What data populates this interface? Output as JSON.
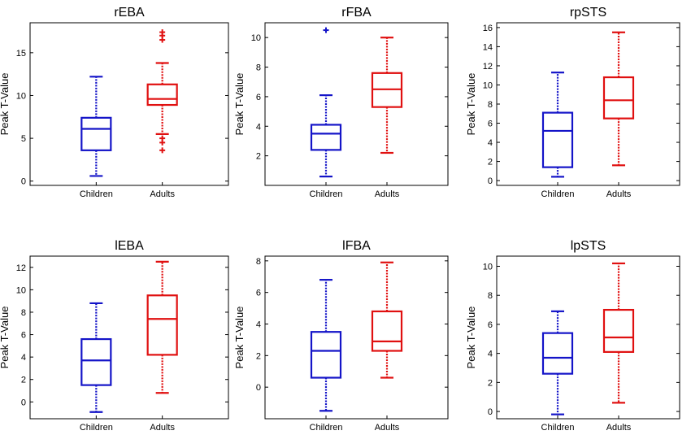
{
  "chart_data": [
    {
      "type": "boxplot",
      "title": "rEBA",
      "ylabel": "Peak T-Value",
      "ylim": [
        -0.5,
        18.5
      ],
      "yticks": [
        0,
        5,
        10,
        15
      ],
      "categories": [
        "Children",
        "Adults"
      ],
      "series": [
        {
          "name": "Children",
          "color": "#1414c8",
          "whisker_low": 0.6,
          "q1": 3.6,
          "median": 6.1,
          "q3": 7.4,
          "whisker_high": 12.2,
          "outliers": []
        },
        {
          "name": "Adults",
          "color": "#e01010",
          "whisker_low": 5.5,
          "q1": 8.9,
          "median": 9.6,
          "q3": 11.3,
          "whisker_high": 13.8,
          "outliers": [
            3.6,
            4.5,
            5.0,
            16.5,
            17.0,
            17.4
          ]
        }
      ]
    },
    {
      "type": "boxplot",
      "title": "rFBA",
      "ylabel": "Peak T-Value",
      "ylim": [
        0,
        11
      ],
      "yticks": [
        2,
        4,
        6,
        8,
        10
      ],
      "categories": [
        "Children",
        "Adults"
      ],
      "series": [
        {
          "name": "Children",
          "color": "#1414c8",
          "whisker_low": 0.6,
          "q1": 2.4,
          "median": 3.5,
          "q3": 4.1,
          "whisker_high": 6.1,
          "outliers": [
            10.5
          ]
        },
        {
          "name": "Adults",
          "color": "#e01010",
          "whisker_low": 2.2,
          "q1": 5.3,
          "median": 6.5,
          "q3": 7.6,
          "whisker_high": 10.0,
          "outliers": []
        }
      ]
    },
    {
      "type": "boxplot",
      "title": "rpSTS",
      "ylabel": "Peak T-Value",
      "ylim": [
        -0.5,
        16.5
      ],
      "yticks": [
        0,
        2,
        4,
        6,
        8,
        10,
        12,
        14,
        16
      ],
      "categories": [
        "Children",
        "Adults"
      ],
      "series": [
        {
          "name": "Children",
          "color": "#1414c8",
          "whisker_low": 0.4,
          "q1": 1.4,
          "median": 5.2,
          "q3": 7.1,
          "whisker_high": 11.3,
          "outliers": []
        },
        {
          "name": "Adults",
          "color": "#e01010",
          "whisker_low": 1.6,
          "q1": 6.5,
          "median": 8.4,
          "q3": 10.8,
          "whisker_high": 15.5,
          "outliers": []
        }
      ]
    },
    {
      "type": "boxplot",
      "title": "lEBA",
      "ylabel": "Peak T-Value",
      "ylim": [
        -1.5,
        13
      ],
      "yticks": [
        0,
        2,
        4,
        6,
        8,
        10,
        12
      ],
      "categories": [
        "Children",
        "Adults"
      ],
      "series": [
        {
          "name": "Children",
          "color": "#1414c8",
          "whisker_low": -0.9,
          "q1": 1.5,
          "median": 3.7,
          "q3": 5.6,
          "whisker_high": 8.8,
          "outliers": []
        },
        {
          "name": "Adults",
          "color": "#e01010",
          "whisker_low": 0.8,
          "q1": 4.2,
          "median": 7.4,
          "q3": 9.5,
          "whisker_high": 12.5,
          "outliers": []
        }
      ]
    },
    {
      "type": "boxplot",
      "title": "lFBA",
      "ylabel": "Peak T-Value",
      "ylim": [
        -2,
        8.3
      ],
      "yticks": [
        0,
        2,
        4,
        6,
        8
      ],
      "categories": [
        "Children",
        "Adults"
      ],
      "series": [
        {
          "name": "Children",
          "color": "#1414c8",
          "whisker_low": -1.5,
          "q1": 0.6,
          "median": 2.3,
          "q3": 3.5,
          "whisker_high": 6.8,
          "outliers": []
        },
        {
          "name": "Adults",
          "color": "#e01010",
          "whisker_low": 0.6,
          "q1": 2.3,
          "median": 2.9,
          "q3": 4.8,
          "whisker_high": 7.9,
          "outliers": []
        }
      ]
    },
    {
      "type": "boxplot",
      "title": "lpSTS",
      "ylabel": "Peak T-Value",
      "ylim": [
        -0.5,
        10.7
      ],
      "yticks": [
        0,
        2,
        4,
        6,
        8,
        10
      ],
      "categories": [
        "Children",
        "Adults"
      ],
      "series": [
        {
          "name": "Children",
          "color": "#1414c8",
          "whisker_low": -0.2,
          "q1": 2.6,
          "median": 3.7,
          "q3": 5.4,
          "whisker_high": 6.9,
          "outliers": []
        },
        {
          "name": "Adults",
          "color": "#e01010",
          "whisker_low": 0.6,
          "q1": 4.1,
          "median": 5.1,
          "q3": 7.0,
          "whisker_high": 10.2,
          "outliers": []
        }
      ]
    }
  ]
}
